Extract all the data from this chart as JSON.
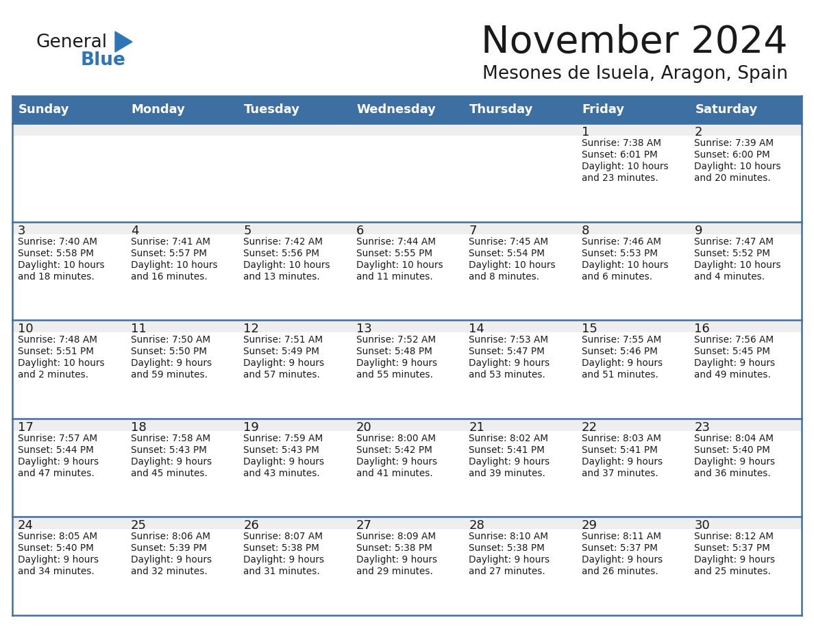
{
  "title": "November 2024",
  "subtitle": "Mesones de Isuela, Aragon, Spain",
  "days_of_week": [
    "Sunday",
    "Monday",
    "Tuesday",
    "Wednesday",
    "Thursday",
    "Friday",
    "Saturday"
  ],
  "header_bg": "#3D6FA3",
  "header_text": "#FFFFFF",
  "cell_bg_white": "#FFFFFF",
  "cell_bg_top_strip": "#EEEEEE",
  "grid_line_blue": "#3D6FA3",
  "grid_line_light": "#CCCCCC",
  "title_color": "#1a1a1a",
  "subtitle_color": "#1a1a1a",
  "logo_general_color": "#1a1a1a",
  "logo_blue_color": "#2E75B6",
  "calendar_data": [
    [
      null,
      null,
      null,
      null,
      null,
      {
        "day": 1,
        "sunrise": "7:38 AM",
        "sunset": "6:01 PM",
        "daylight": "10 hours and 23 minutes."
      },
      {
        "day": 2,
        "sunrise": "7:39 AM",
        "sunset": "6:00 PM",
        "daylight": "10 hours and 20 minutes."
      }
    ],
    [
      {
        "day": 3,
        "sunrise": "7:40 AM",
        "sunset": "5:58 PM",
        "daylight": "10 hours and 18 minutes."
      },
      {
        "day": 4,
        "sunrise": "7:41 AM",
        "sunset": "5:57 PM",
        "daylight": "10 hours and 16 minutes."
      },
      {
        "day": 5,
        "sunrise": "7:42 AM",
        "sunset": "5:56 PM",
        "daylight": "10 hours and 13 minutes."
      },
      {
        "day": 6,
        "sunrise": "7:44 AM",
        "sunset": "5:55 PM",
        "daylight": "10 hours and 11 minutes."
      },
      {
        "day": 7,
        "sunrise": "7:45 AM",
        "sunset": "5:54 PM",
        "daylight": "10 hours and 8 minutes."
      },
      {
        "day": 8,
        "sunrise": "7:46 AM",
        "sunset": "5:53 PM",
        "daylight": "10 hours and 6 minutes."
      },
      {
        "day": 9,
        "sunrise": "7:47 AM",
        "sunset": "5:52 PM",
        "daylight": "10 hours and 4 minutes."
      }
    ],
    [
      {
        "day": 10,
        "sunrise": "7:48 AM",
        "sunset": "5:51 PM",
        "daylight": "10 hours and 2 minutes."
      },
      {
        "day": 11,
        "sunrise": "7:50 AM",
        "sunset": "5:50 PM",
        "daylight": "9 hours and 59 minutes."
      },
      {
        "day": 12,
        "sunrise": "7:51 AM",
        "sunset": "5:49 PM",
        "daylight": "9 hours and 57 minutes."
      },
      {
        "day": 13,
        "sunrise": "7:52 AM",
        "sunset": "5:48 PM",
        "daylight": "9 hours and 55 minutes."
      },
      {
        "day": 14,
        "sunrise": "7:53 AM",
        "sunset": "5:47 PM",
        "daylight": "9 hours and 53 minutes."
      },
      {
        "day": 15,
        "sunrise": "7:55 AM",
        "sunset": "5:46 PM",
        "daylight": "9 hours and 51 minutes."
      },
      {
        "day": 16,
        "sunrise": "7:56 AM",
        "sunset": "5:45 PM",
        "daylight": "9 hours and 49 minutes."
      }
    ],
    [
      {
        "day": 17,
        "sunrise": "7:57 AM",
        "sunset": "5:44 PM",
        "daylight": "9 hours and 47 minutes."
      },
      {
        "day": 18,
        "sunrise": "7:58 AM",
        "sunset": "5:43 PM",
        "daylight": "9 hours and 45 minutes."
      },
      {
        "day": 19,
        "sunrise": "7:59 AM",
        "sunset": "5:43 PM",
        "daylight": "9 hours and 43 minutes."
      },
      {
        "day": 20,
        "sunrise": "8:00 AM",
        "sunset": "5:42 PM",
        "daylight": "9 hours and 41 minutes."
      },
      {
        "day": 21,
        "sunrise": "8:02 AM",
        "sunset": "5:41 PM",
        "daylight": "9 hours and 39 minutes."
      },
      {
        "day": 22,
        "sunrise": "8:03 AM",
        "sunset": "5:41 PM",
        "daylight": "9 hours and 37 minutes."
      },
      {
        "day": 23,
        "sunrise": "8:04 AM",
        "sunset": "5:40 PM",
        "daylight": "9 hours and 36 minutes."
      }
    ],
    [
      {
        "day": 24,
        "sunrise": "8:05 AM",
        "sunset": "5:40 PM",
        "daylight": "9 hours and 34 minutes."
      },
      {
        "day": 25,
        "sunrise": "8:06 AM",
        "sunset": "5:39 PM",
        "daylight": "9 hours and 32 minutes."
      },
      {
        "day": 26,
        "sunrise": "8:07 AM",
        "sunset": "5:38 PM",
        "daylight": "9 hours and 31 minutes."
      },
      {
        "day": 27,
        "sunrise": "8:09 AM",
        "sunset": "5:38 PM",
        "daylight": "9 hours and 29 minutes."
      },
      {
        "day": 28,
        "sunrise": "8:10 AM",
        "sunset": "5:38 PM",
        "daylight": "9 hours and 27 minutes."
      },
      {
        "day": 29,
        "sunrise": "8:11 AM",
        "sunset": "5:37 PM",
        "daylight": "9 hours and 26 minutes."
      },
      {
        "day": 30,
        "sunrise": "8:12 AM",
        "sunset": "5:37 PM",
        "daylight": "9 hours and 25 minutes."
      }
    ]
  ],
  "figsize": [
    11.88,
    9.18
  ],
  "dpi": 100
}
